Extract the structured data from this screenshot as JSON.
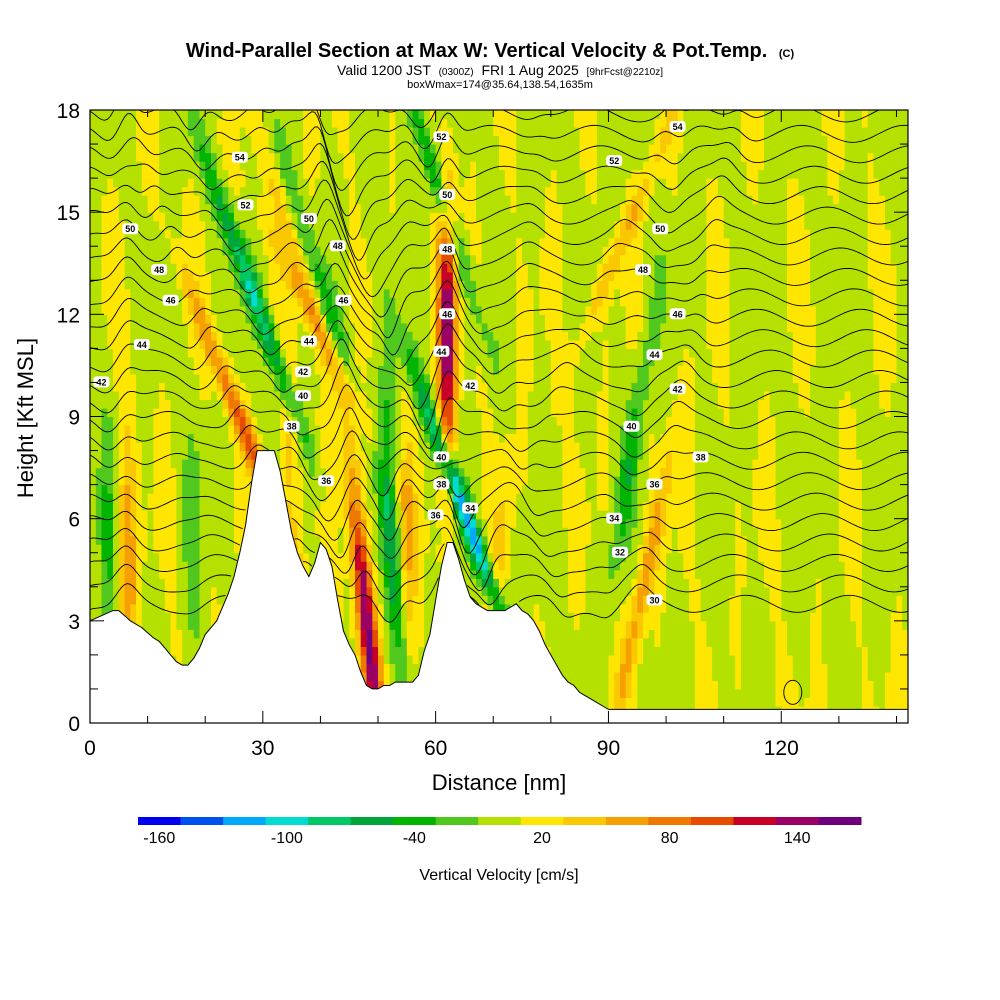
{
  "title": {
    "line1": "Wind-Parallel Section at Max W: Vertical Velocity & Pot.Temp.",
    "line1_mark": "(C)",
    "line2_a": "Valid 1200 JST",
    "line2_b": "(0300Z)",
    "line2_c": "FRI 1 Aug 2025",
    "line2_d": "[9hrFcst@2210z]",
    "line3": "boxWmax=174@35.64,138.54,1635m"
  },
  "chart_data": {
    "type": "heatmap",
    "xlabel": "Distance [nm]",
    "ylabel": "Height [Kft MSL]",
    "xlim": [
      0,
      142
    ],
    "ylim": [
      0,
      18
    ],
    "x_ticks": [
      0,
      30,
      60,
      90,
      120
    ],
    "y_ticks": [
      0,
      3,
      6,
      9,
      12,
      15,
      18
    ],
    "terrain": {
      "x": [
        0,
        4,
        5,
        7,
        9,
        11,
        12,
        13,
        14,
        15,
        16,
        17,
        18,
        19,
        20,
        22,
        24,
        25,
        26,
        27,
        28,
        29,
        32,
        33,
        34,
        35,
        36,
        37,
        38,
        39,
        40,
        41,
        42,
        43,
        44,
        45,
        46,
        47,
        48,
        49,
        50,
        51,
        52,
        53,
        54,
        55,
        56,
        57,
        58,
        59,
        60,
        61,
        62,
        63,
        64,
        65,
        66,
        67,
        68,
        69,
        70,
        71,
        72,
        73,
        74,
        75,
        76,
        77,
        78,
        79,
        80,
        81,
        82,
        83,
        84,
        85,
        86,
        87,
        88,
        89,
        90,
        91,
        92,
        93,
        94,
        96,
        98,
        100,
        102,
        104,
        106,
        108,
        110,
        112,
        114,
        116,
        118,
        120,
        122,
        124,
        126,
        128,
        130,
        132,
        134,
        136,
        138,
        140,
        142
      ],
      "h": [
        3.0,
        3.3,
        3.3,
        3.0,
        2.8,
        2.5,
        2.4,
        2.2,
        2.0,
        1.8,
        1.7,
        1.7,
        1.9,
        2.2,
        2.6,
        3.0,
        3.8,
        4.3,
        5.0,
        5.8,
        7.0,
        8.0,
        8.0,
        7.4,
        6.5,
        5.6,
        5.0,
        4.6,
        4.3,
        4.7,
        5.3,
        5.1,
        4.6,
        3.6,
        2.7,
        2.3,
        2.0,
        1.5,
        1.1,
        1.0,
        1.0,
        1.1,
        1.1,
        1.2,
        1.2,
        1.2,
        1.2,
        1.4,
        2.1,
        2.6,
        3.6,
        4.6,
        5.3,
        5.3,
        4.8,
        4.2,
        3.7,
        3.5,
        3.4,
        3.3,
        3.3,
        3.3,
        3.3,
        3.4,
        3.5,
        3.3,
        3.2,
        3.0,
        2.7,
        2.3,
        2.0,
        1.7,
        1.4,
        1.2,
        1.1,
        0.9,
        0.8,
        0.7,
        0.6,
        0.5,
        0.4,
        0.4,
        0.4,
        0.4,
        0.4,
        0.4,
        0.4,
        0.4,
        0.4,
        0.4,
        0.4,
        0.4,
        0.4,
        0.4,
        0.4,
        0.4,
        0.4,
        0.4,
        0.4,
        0.4,
        0.4,
        0.4,
        0.4,
        0.4,
        0.4,
        0.4,
        0.4,
        0.4,
        0.4
      ]
    },
    "updrafts": [
      {
        "x0": 27,
        "z0": 8.5,
        "slope": -0.38,
        "amp": 85
      },
      {
        "x0": 48,
        "z0": 3.0,
        "slope": -0.1,
        "amp": 150
      },
      {
        "x0": 62,
        "z0": 11.5,
        "slope": 0.0,
        "amp": 140
      },
      {
        "x0": 6.5,
        "z0": 4.5,
        "slope": 0.0,
        "amp": 60
      },
      {
        "x0": 96,
        "z0": 4.0,
        "slope": 0.2,
        "amp": 55
      },
      {
        "x0": 92,
        "z0": 14.0,
        "slope": 0.4,
        "amp": 40
      },
      {
        "x0": 35,
        "z0": 7.5,
        "slope": 0.0,
        "amp": 30
      },
      {
        "x0": 37,
        "z0": 13.0,
        "slope": -0.3,
        "amp": 35
      },
      {
        "x0": 55,
        "z0": 4.0,
        "slope": 0.0,
        "amp": 40
      },
      {
        "x0": 43,
        "z0": 10.5,
        "slope": -0.5,
        "amp": 40
      },
      {
        "x0": 70,
        "z0": 3.5,
        "slope": 0.1,
        "amp": 30
      }
    ],
    "downdrafts": [
      {
        "x0": 28.5,
        "z0": 12.5,
        "slope": -0.35,
        "amp": -90
      },
      {
        "x0": 65,
        "z0": 6.2,
        "slope": -0.35,
        "amp": -125
      },
      {
        "x0": 60,
        "z0": 16.0,
        "slope": -0.3,
        "amp": -60
      },
      {
        "x0": 53,
        "z0": 4.0,
        "slope": -0.1,
        "amp": -55
      },
      {
        "x0": 52,
        "z0": 8.0,
        "slope": 0.0,
        "amp": -35
      },
      {
        "x0": 40,
        "z0": 13.0,
        "slope": -0.3,
        "amp": -40
      },
      {
        "x0": 94,
        "z0": 8.0,
        "slope": 0.15,
        "amp": -45
      },
      {
        "x0": 3,
        "z0": 5.0,
        "slope": 0.0,
        "amp": -30
      },
      {
        "x0": 18,
        "z0": 5.0,
        "slope": 0.0,
        "amp": -20
      }
    ],
    "contour_levels": [
      30,
      31,
      32,
      33,
      34,
      35,
      36,
      37,
      38,
      39,
      40,
      41,
      42,
      43,
      44,
      45,
      46,
      47,
      48,
      49,
      50,
      51,
      52,
      53,
      54,
      55
    ],
    "theta_labels": [
      {
        "text": "54",
        "x": 26,
        "z": 16.6
      },
      {
        "text": "52",
        "x": 27,
        "z": 15.2
      },
      {
        "text": "50",
        "x": 7,
        "z": 14.5
      },
      {
        "text": "50",
        "x": 38,
        "z": 14.8
      },
      {
        "text": "48",
        "x": 12,
        "z": 13.3
      },
      {
        "text": "48",
        "x": 43,
        "z": 14.0
      },
      {
        "text": "46",
        "x": 14,
        "z": 12.4
      },
      {
        "text": "46",
        "x": 44,
        "z": 12.4
      },
      {
        "text": "44",
        "x": 9,
        "z": 11.1
      },
      {
        "text": "44",
        "x": 38,
        "z": 11.2
      },
      {
        "text": "42",
        "x": 2,
        "z": 10.0
      },
      {
        "text": "42",
        "x": 37,
        "z": 10.3
      },
      {
        "text": "40",
        "x": 37,
        "z": 9.6
      },
      {
        "text": "38",
        "x": 35,
        "z": 8.7
      },
      {
        "text": "36",
        "x": 41,
        "z": 7.1
      },
      {
        "text": "52",
        "x": 61,
        "z": 17.2
      },
      {
        "text": "50",
        "x": 62,
        "z": 15.5
      },
      {
        "text": "48",
        "x": 62,
        "z": 13.9
      },
      {
        "text": "46",
        "x": 62,
        "z": 12.0
      },
      {
        "text": "44",
        "x": 61,
        "z": 10.9
      },
      {
        "text": "42",
        "x": 66,
        "z": 9.9
      },
      {
        "text": "40",
        "x": 61,
        "z": 7.8
      },
      {
        "text": "38",
        "x": 61,
        "z": 7.0
      },
      {
        "text": "36",
        "x": 60,
        "z": 6.1
      },
      {
        "text": "34",
        "x": 66,
        "z": 6.3
      },
      {
        "text": "54",
        "x": 102,
        "z": 17.5
      },
      {
        "text": "52",
        "x": 91,
        "z": 16.5
      },
      {
        "text": "50",
        "x": 99,
        "z": 14.5
      },
      {
        "text": "48",
        "x": 96,
        "z": 13.3
      },
      {
        "text": "46",
        "x": 102,
        "z": 12.0
      },
      {
        "text": "44",
        "x": 98,
        "z": 10.8
      },
      {
        "text": "42",
        "x": 102,
        "z": 9.8
      },
      {
        "text": "40",
        "x": 94,
        "z": 8.7
      },
      {
        "text": "38",
        "x": 106,
        "z": 7.8
      },
      {
        "text": "36",
        "x": 98,
        "z": 7.0
      },
      {
        "text": "34",
        "x": 91,
        "z": 6.0
      },
      {
        "text": "32",
        "x": 92,
        "z": 5.0
      },
      {
        "text": "30",
        "x": 98,
        "z": 3.6
      }
    ],
    "colorbar": {
      "label": "Vertical Velocity [cm/s]",
      "tick_labels": [
        "-160",
        "-100",
        "-40",
        "20",
        "80",
        "140"
      ],
      "tick_values": [
        -160,
        -100,
        -40,
        20,
        80,
        140
      ],
      "bins_min": -170,
      "bins_width": 20,
      "colors": [
        "#0000f0",
        "#0050f0",
        "#00aaf8",
        "#00dcd2",
        "#00c864",
        "#00a53c",
        "#00b400",
        "#50c81e",
        "#b4e100",
        "#ffe600",
        "#fac800",
        "#f5a000",
        "#f07800",
        "#e64b00",
        "#c80028",
        "#9b0064",
        "#6e007d"
      ]
    }
  }
}
